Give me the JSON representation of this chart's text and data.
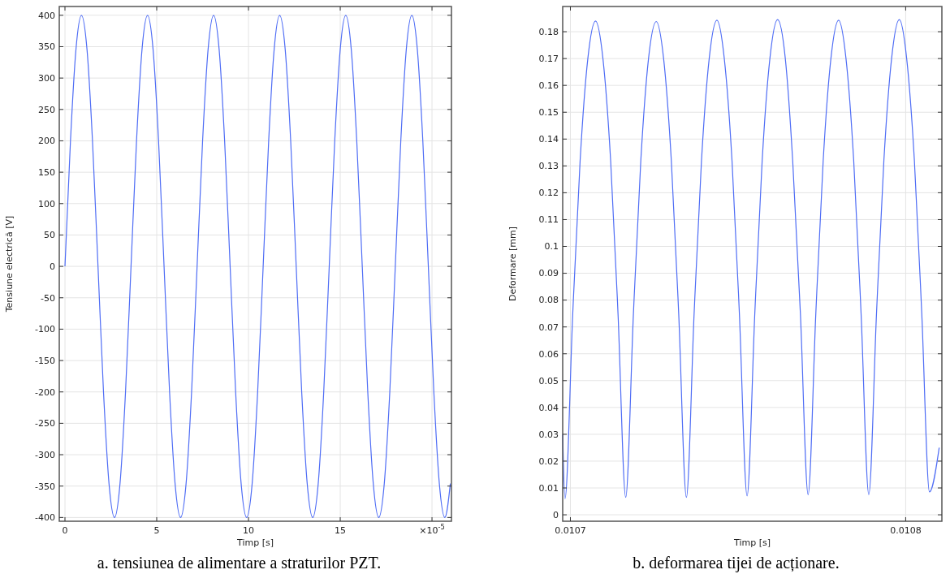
{
  "chart_data": [
    {
      "type": "line",
      "xlabel": "Timp [s]",
      "ylabel": "Tensiune electrică [V]",
      "annotations": [
        "a. tensiunea de alimentare a straturilor PZT."
      ],
      "grid": true,
      "marker": "none",
      "line_style": "solid",
      "xlim": [
        -0.31,
        21.06
      ],
      "ylim": [
        -406,
        414
      ],
      "xticks": [
        0,
        5,
        10,
        15,
        {
          "value": 20,
          "label": "×10$^{-5}$"
        }
      ],
      "yticks": [
        -400,
        -350,
        -300,
        -250,
        -200,
        -150,
        -100,
        -50,
        0,
        50,
        100,
        150,
        200,
        250,
        300,
        350,
        400
      ],
      "series": [
        {
          "color": "#4f6df5",
          "x": [
            0,
            0.3,
            0.6,
            0.9,
            1.2,
            1.5,
            1.8,
            2.1,
            2.4,
            2.7,
            3,
            3.3,
            3.6,
            3.9,
            4.2,
            4.5,
            4.8,
            5.1,
            5.4,
            5.7,
            6,
            6.3,
            6.6,
            6.9,
            7.2,
            7.5,
            7.8,
            8.1,
            8.4,
            8.7,
            9,
            9.3,
            9.6,
            9.9,
            10.2,
            10.5,
            10.8,
            11.1,
            11.4,
            11.7,
            12,
            12.3,
            12.6,
            12.9,
            13.2,
            13.5,
            13.8,
            14.1,
            14.4,
            14.7,
            15,
            15.3,
            15.6,
            15.9,
            16.2,
            16.5,
            16.8,
            17.1,
            17.4,
            17.7,
            18,
            18.3,
            18.6,
            18.9,
            19.2,
            19.5,
            19.8,
            20.1,
            20.4,
            20.7,
            21
          ],
          "values": [
            0,
            200,
            346,
            400,
            346,
            200,
            0,
            -200,
            -346,
            -400,
            -346,
            -200,
            0,
            200,
            346,
            400,
            346,
            200,
            0,
            -200,
            -346,
            -400,
            -346,
            -200,
            0,
            200,
            346,
            400,
            346,
            200,
            0,
            -200,
            -346,
            -400,
            -346,
            -200,
            0,
            200,
            346,
            400,
            346,
            200,
            0,
            -200,
            -346,
            -400,
            -346,
            -200,
            0,
            200,
            346,
            400,
            346,
            200,
            0,
            -200,
            -346,
            -400,
            -346,
            -200,
            0,
            200,
            346,
            400,
            346,
            200,
            0,
            -200,
            -346,
            -400,
            -346
          ]
        }
      ]
    },
    {
      "type": "line",
      "xlabel": "Timp [s]",
      "ylabel": "Deformare [mm]",
      "annotations": [
        "b. deformarea tijei de acționare."
      ],
      "grid": true,
      "marker": "none",
      "line_style": "solid",
      "xlim": [
        0.0106977,
        0.0108108
      ],
      "ylim": [
        -0.0024,
        0.1894
      ],
      "xticks": [
        0.0107,
        0.0108
      ],
      "yticks": [
        0,
        0.01,
        0.02,
        0.03,
        0.04,
        0.05,
        0.06,
        0.07,
        0.08,
        0.09,
        0.1,
        0.11,
        0.12,
        0.13,
        0.14,
        0.15,
        0.16,
        0.17,
        0.18
      ],
      "series": [
        {
          "color": "#4f6df5",
          "x": [
            0.0106977,
            0.0106984,
            0.0107007,
            0.0107029,
            0.0107052,
            0.0107075,
            0.0107097,
            0.010712,
            0.0107142,
            0.0107165,
            0.0107188,
            0.010721,
            0.0107233,
            0.0107256,
            0.0107278,
            0.0107301,
            0.0107323,
            0.0107346,
            0.0107369,
            0.0107391,
            0.0107414,
            0.0107437,
            0.0107459,
            0.0107482,
            0.0107504,
            0.0107527,
            0.010755,
            0.0107572,
            0.0107595,
            0.0107618,
            0.0107641,
            0.0107663,
            0.0107686,
            0.0107709,
            0.0107732,
            0.0107754,
            0.0107777,
            0.01078,
            0.0107822,
            0.0107845,
            0.0107867,
            0.010789,
            0.0107913,
            0.0107935,
            0.0107958,
            0.0107981,
            0.0108003,
            0.0108026,
            0.0108048,
            0.0108071,
            0.01081
          ],
          "values": [
            0.03,
            0.006,
            0.075,
            0.132,
            0.17,
            0.184,
            0.17,
            0.132,
            0.075,
            0.0065,
            0.075,
            0.132,
            0.17,
            0.1838,
            0.17,
            0.132,
            0.075,
            0.0065,
            0.075,
            0.132,
            0.17,
            0.1843,
            0.17,
            0.132,
            0.075,
            0.007,
            0.075,
            0.132,
            0.17,
            0.1845,
            0.17,
            0.132,
            0.075,
            0.0075,
            0.075,
            0.132,
            0.17,
            0.1843,
            0.17,
            0.132,
            0.075,
            0.0075,
            0.075,
            0.132,
            0.17,
            0.1845,
            0.17,
            0.132,
            0.075,
            0.0085,
            0.025
          ]
        }
      ]
    }
  ]
}
